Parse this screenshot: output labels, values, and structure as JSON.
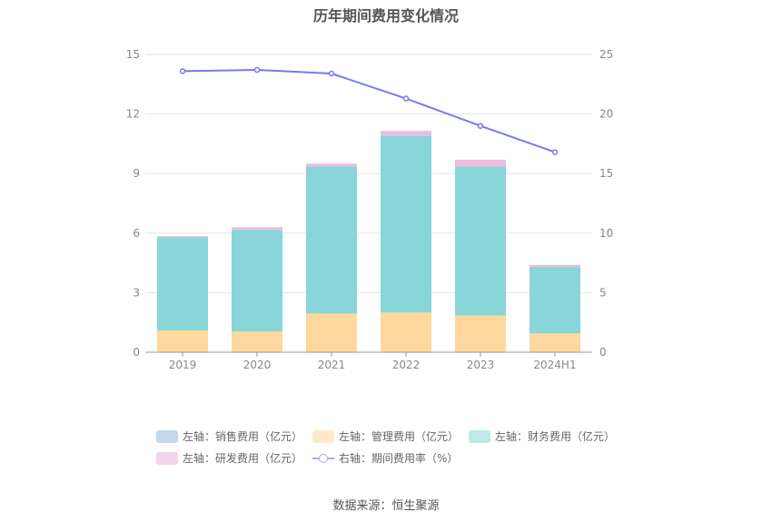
{
  "title": "历年期间费用变化情况",
  "source": "数据来源：恒生聚源",
  "chart_data": {
    "type": "bar",
    "stacked": true,
    "categories": [
      "2019",
      "2020",
      "2021",
      "2022",
      "2023",
      "2024H1"
    ],
    "left_axis": {
      "min": 0,
      "max": 15,
      "ticks": [
        "0",
        "3",
        "6",
        "9",
        "12",
        "15"
      ]
    },
    "right_axis": {
      "min": 0,
      "max": 25,
      "ticks": [
        "0",
        "5",
        "10",
        "15",
        "20",
        "25"
      ]
    },
    "grid": true,
    "legend_position": "bottom",
    "series": [
      {
        "name": "左轴：销售费用（亿元）",
        "axis": "left",
        "type": "bar",
        "color": "#c5d6ee",
        "values": [
          0,
          0,
          0,
          0,
          0,
          0
        ]
      },
      {
        "name": "左轴：管理费用（亿元）",
        "axis": "left",
        "type": "bar",
        "color": "#fed89c",
        "values": [
          1.1,
          1.05,
          1.95,
          2.0,
          1.85,
          0.95
        ]
      },
      {
        "name": "左轴：财务费用（亿元）",
        "axis": "left",
        "type": "bar",
        "color": "#88d5da",
        "values": [
          4.7,
          5.1,
          7.4,
          8.9,
          7.5,
          3.35
        ]
      },
      {
        "name": "左轴：研发费用（亿元）",
        "axis": "left",
        "type": "bar",
        "color": "#ebbde0",
        "values": [
          0.05,
          0.15,
          0.15,
          0.25,
          0.35,
          0.1
        ]
      },
      {
        "name": "右轴：期间费用率（%）",
        "axis": "right",
        "type": "line",
        "color": "#7b78ee",
        "values": [
          23.6,
          23.7,
          23.4,
          21.3,
          19.0,
          16.8
        ]
      }
    ]
  }
}
